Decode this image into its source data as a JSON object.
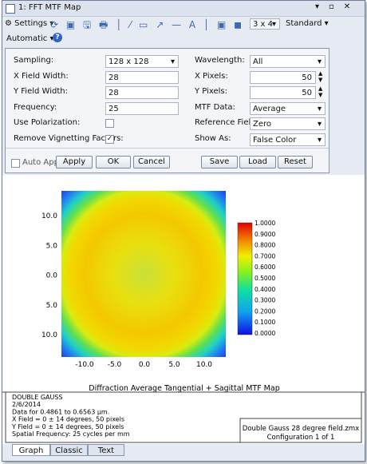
{
  "window": {
    "title": "1: FFT MTF Map"
  },
  "toolbar": {
    "settings": "Settings",
    "layout": "3 x 4",
    "standard": "Standard",
    "automatic": "Automatic"
  },
  "settings": {
    "left": [
      {
        "label": "Sampling:",
        "value": "128 x 128",
        "kind": "dropdown"
      },
      {
        "label": "X Field Width:",
        "value": "28",
        "kind": "input"
      },
      {
        "label": "Y Field Width:",
        "value": "28",
        "kind": "input"
      },
      {
        "label": "Frequency:",
        "value": "25",
        "kind": "input"
      },
      {
        "label": "Use Polarization:",
        "checked": false,
        "kind": "checkbox"
      },
      {
        "label": "Remove Vignetting Factors:",
        "checked": true,
        "kind": "checkbox"
      }
    ],
    "right": [
      {
        "label": "Wavelength:",
        "value": "All",
        "kind": "dropdown"
      },
      {
        "label": "X Pixels:",
        "value": "50",
        "kind": "spinner"
      },
      {
        "label": "Y Pixels:",
        "value": "50",
        "kind": "spinner"
      },
      {
        "label": "MTF Data:",
        "value": "Average",
        "kind": "dropdown"
      },
      {
        "label": "Reference Field:",
        "value": "Zero",
        "kind": "dropdown"
      },
      {
        "label": "Show As:",
        "value": "False Color",
        "kind": "dropdown"
      }
    ],
    "auto_apply": {
      "label": "Auto Apply",
      "checked": false
    },
    "buttons": [
      "Apply",
      "OK",
      "Cancel",
      "Save",
      "Load",
      "Reset"
    ]
  },
  "plot": {
    "yticks": [
      "10.0",
      "5.0",
      "0.0",
      "5.0",
      "10.0"
    ],
    "xticks": [
      "-10.0",
      "-5.0",
      "0.0",
      "5.0",
      "10.0"
    ],
    "colorbar": [
      "1.0000",
      "0.9000",
      "0.8000",
      "0.7000",
      "0.6000",
      "0.5000",
      "0.4000",
      "0.3000",
      "0.2000",
      "0.1000",
      "0.0000"
    ],
    "caption": "Diffraction Average Tangential + Sagittal MTF Map"
  },
  "info": {
    "lines": [
      "DOUBLE GAUSS",
      "2/6/2014",
      "Data for 0.4861 to 0.6563 µm.",
      "X Field = 0 ± 14 degrees, 50 pixels",
      "Y Field = 0 ± 14 degrees, 50 pixels",
      "Spatial Frequency: 25 cycles per mm"
    ],
    "file": "Double Gauss 28 degree field.zmx",
    "config": "Configuration 1 of 1"
  },
  "tabs": [
    "Graph",
    "Classic",
    "Text"
  ]
}
